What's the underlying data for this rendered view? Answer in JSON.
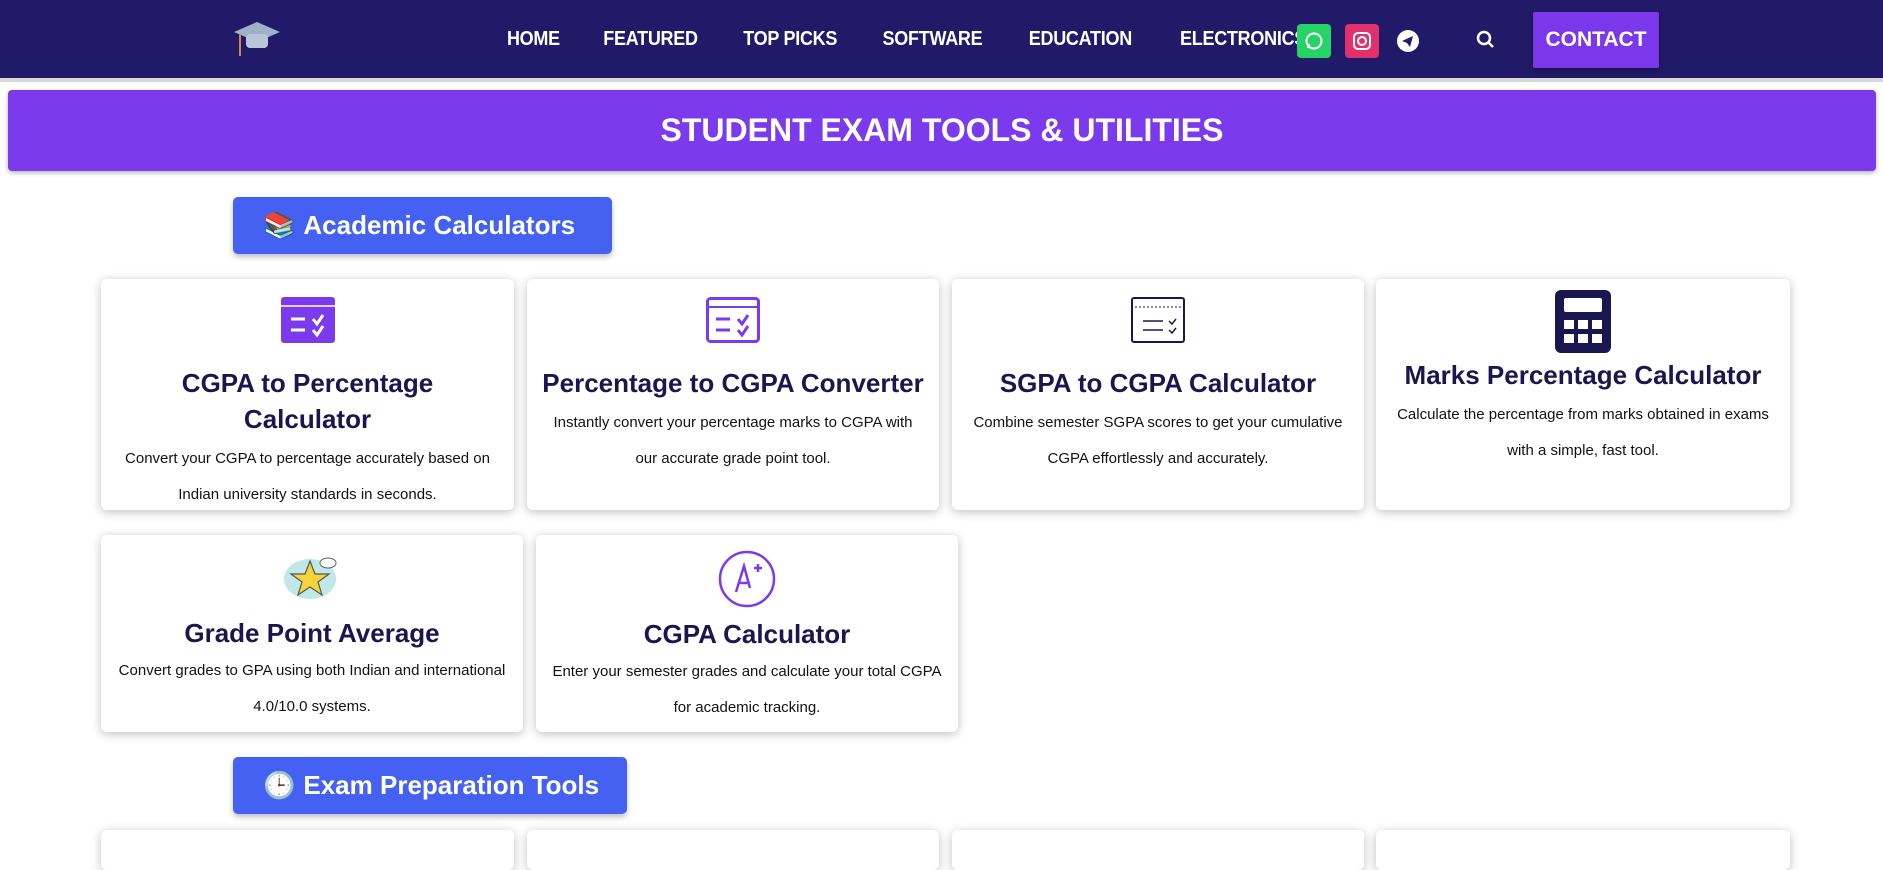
{
  "nav": {
    "items": [
      "HOME",
      "FEATURED",
      "TOP PICKS",
      "SOFTWARE",
      "EDUCATION",
      "ELECTRONICS"
    ],
    "contact": "CONTACT",
    "social": [
      "whatsapp-icon",
      "instagram-icon",
      "telegram-icon"
    ]
  },
  "banner": {
    "title": "STUDENT EXAM TOOLS & UTILITIES"
  },
  "sections": [
    {
      "icon": "books-icon",
      "label": "Academic Calculators"
    },
    {
      "icon": "clock-icon",
      "label": "Exam Preparation Tools"
    }
  ],
  "cards": [
    {
      "title": "CGPA to Percentage Calculator",
      "desc": "Convert your CGPA to percentage accurately based on Indian university standards in seconds."
    },
    {
      "title": "Percentage to CGPA Converter",
      "desc": "Instantly convert your percentage marks to CGPA with our accurate grade point tool."
    },
    {
      "title": "SGPA to CGPA Calculator",
      "desc": "Combine semester SGPA scores to get your cumulative CGPA effortlessly and accurately."
    },
    {
      "title": "Marks Percentage Calculator",
      "desc": "Calculate the percentage from marks obtained in exams with a simple, fast tool."
    },
    {
      "title": "Grade Point Average",
      "desc": "Convert grades to GPA using both Indian and international 4.0/10.0 systems."
    },
    {
      "title": "CGPA Calculator",
      "desc": "Enter your semester grades and calculate your total CGPA for academic tracking."
    }
  ],
  "colors": {
    "nav": "#211a68",
    "accent": "#7b3aec",
    "section": "#4461f2",
    "whatsapp": "#25d366",
    "instagram": "#e1306c"
  }
}
